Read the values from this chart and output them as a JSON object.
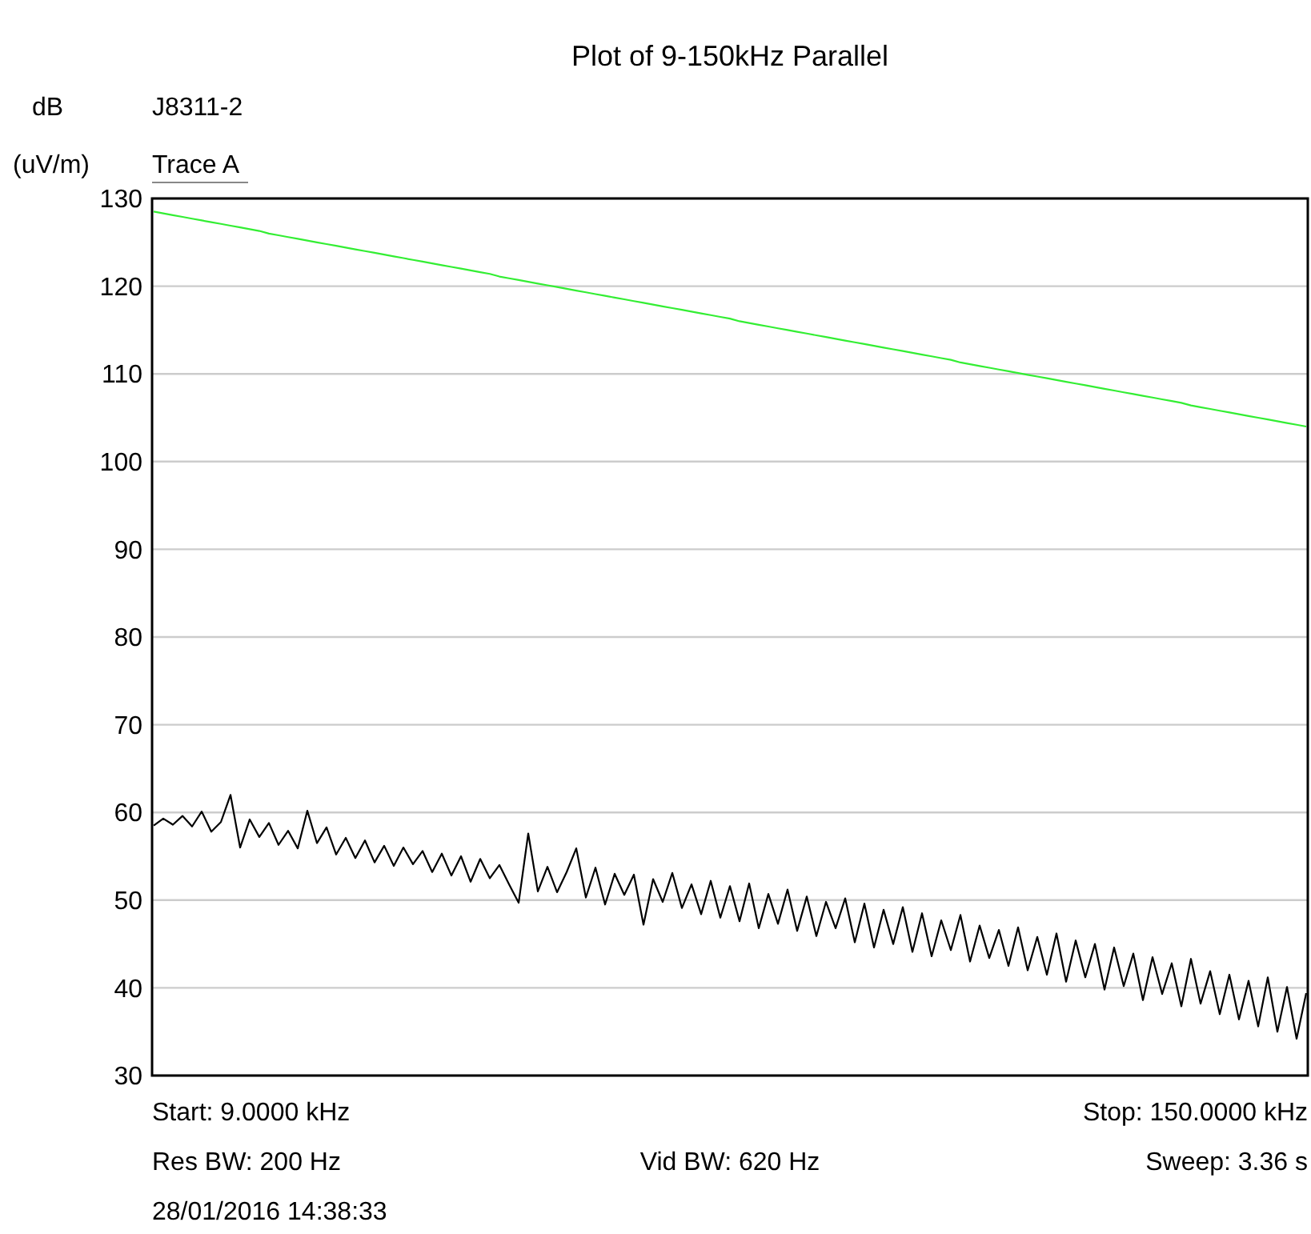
{
  "chart_data": {
    "type": "line",
    "title": "Plot of 9-150kHz Parallel",
    "subtitle": "J8311-2",
    "ylabel": "dB (uV/m)",
    "annotations": [
      "Start: 9.0000 kHz",
      "Stop: 150.0000 kHz",
      "Res BW: 200 Hz",
      "Vid BW: 620 Hz",
      "Sweep: 3.36 s",
      "28/01/2016 14:38:33"
    ],
    "grid": "y",
    "tick_labels": "y",
    "categories": [
      null,
      null,
      null,
      null,
      null,
      null,
      null,
      null,
      null,
      null,
      null,
      null,
      null,
      null,
      null,
      null,
      null,
      null,
      null,
      null,
      null,
      null,
      null,
      null,
      null,
      null,
      null,
      null,
      null,
      null,
      null,
      null,
      null,
      null,
      null,
      null,
      null,
      null,
      null,
      null,
      null,
      null,
      null,
      null,
      null,
      null,
      null,
      null,
      null,
      null,
      null,
      null,
      null,
      null,
      null,
      null,
      null,
      null,
      null,
      null,
      null,
      null,
      null,
      null,
      null,
      null,
      null,
      null,
      null,
      null,
      null,
      null,
      null,
      null,
      null,
      null,
      null,
      null,
      null,
      null,
      null,
      null,
      null,
      null,
      null,
      null,
      null,
      null,
      null,
      null,
      null,
      null,
      null,
      null,
      null,
      null,
      null,
      null,
      null,
      null,
      null,
      null,
      null,
      null,
      null,
      null,
      null,
      null,
      null,
      null,
      null,
      null,
      null,
      null,
      null,
      null,
      null,
      null,
      null,
      null,
      null
    ],
    "ylim": [
      30,
      130
    ],
    "yticks": [
      30,
      40,
      50,
      60,
      70,
      80,
      90,
      100,
      110,
      120,
      130
    ],
    "series": [
      {
        "color": "#33ee33",
        "values": [
          128.5,
          128.3,
          128.1,
          127.9,
          127.7,
          127.5,
          127.3,
          127.1,
          126.9,
          126.7,
          126.5,
          126.3,
          126.0,
          125.8,
          125.6,
          125.4,
          125.2,
          125.0,
          124.8,
          124.6,
          124.4,
          124.2,
          124.0,
          123.8,
          123.6,
          123.4,
          123.2,
          123.0,
          122.8,
          122.6,
          122.4,
          122.2,
          122.0,
          121.8,
          121.6,
          121.4,
          121.1,
          120.9,
          120.7,
          120.5,
          120.3,
          120.1,
          119.9,
          119.7,
          119.5,
          119.3,
          119.1,
          118.9,
          118.7,
          118.5,
          118.3,
          118.1,
          117.9,
          117.7,
          117.5,
          117.3,
          117.1,
          116.9,
          116.7,
          116.5,
          116.3,
          116.0,
          115.8,
          115.6,
          115.4,
          115.2,
          115.0,
          114.8,
          114.6,
          114.4,
          114.2,
          114.0,
          113.8,
          113.6,
          113.4,
          113.2,
          113.0,
          112.8,
          112.6,
          112.4,
          112.2,
          112.0,
          111.8,
          111.6,
          111.3,
          111.1,
          110.9,
          110.7,
          110.5,
          110.3,
          110.1,
          109.9,
          109.7,
          109.5,
          109.3,
          109.1,
          108.9,
          108.7,
          108.5,
          108.3,
          108.1,
          107.9,
          107.7,
          107.5,
          107.3,
          107.1,
          106.9,
          106.7,
          106.4,
          106.2,
          106.0,
          105.8,
          105.6,
          105.4,
          105.2,
          105.0,
          104.8,
          104.6,
          104.4,
          104.2,
          104.0
        ]
      },
      {
        "name": "Trace A",
        "color": "#000000",
        "values": [
          58.5,
          59.3,
          58.6,
          59.6,
          58.4,
          60.1,
          57.8,
          58.9,
          62.0,
          56.0,
          59.2,
          57.2,
          58.8,
          56.3,
          57.9,
          55.9,
          60.2,
          56.5,
          58.3,
          55.2,
          57.1,
          54.8,
          56.8,
          54.3,
          56.2,
          53.9,
          56.0,
          54.1,
          55.6,
          53.2,
          55.3,
          52.8,
          55.0,
          52.1,
          54.7,
          52.5,
          54.0,
          51.8,
          49.7,
          57.6,
          51.0,
          53.8,
          50.9,
          53.2,
          55.9,
          50.3,
          53.7,
          49.5,
          53.0,
          50.6,
          52.9,
          47.2,
          52.4,
          49.8,
          53.1,
          49.1,
          51.8,
          48.4,
          52.2,
          48.0,
          51.6,
          47.6,
          51.9,
          46.8,
          50.7,
          47.3,
          51.2,
          46.5,
          50.4,
          45.9,
          49.8,
          46.8,
          50.2,
          45.2,
          49.6,
          44.6,
          48.9,
          45.0,
          49.2,
          44.1,
          48.5,
          43.6,
          47.7,
          44.3,
          48.3,
          43.0,
          47.1,
          43.4,
          46.6,
          42.5,
          46.9,
          42.0,
          45.8,
          41.5,
          46.2,
          40.7,
          45.4,
          41.2,
          45.0,
          39.8,
          44.6,
          40.2,
          43.9,
          38.6,
          43.5,
          39.3,
          42.8,
          37.9,
          43.3,
          38.2,
          41.9,
          37.0,
          41.5,
          36.4,
          40.8,
          35.6,
          41.2,
          35.0,
          40.1,
          34.2,
          39.4
        ]
      }
    ]
  }
}
